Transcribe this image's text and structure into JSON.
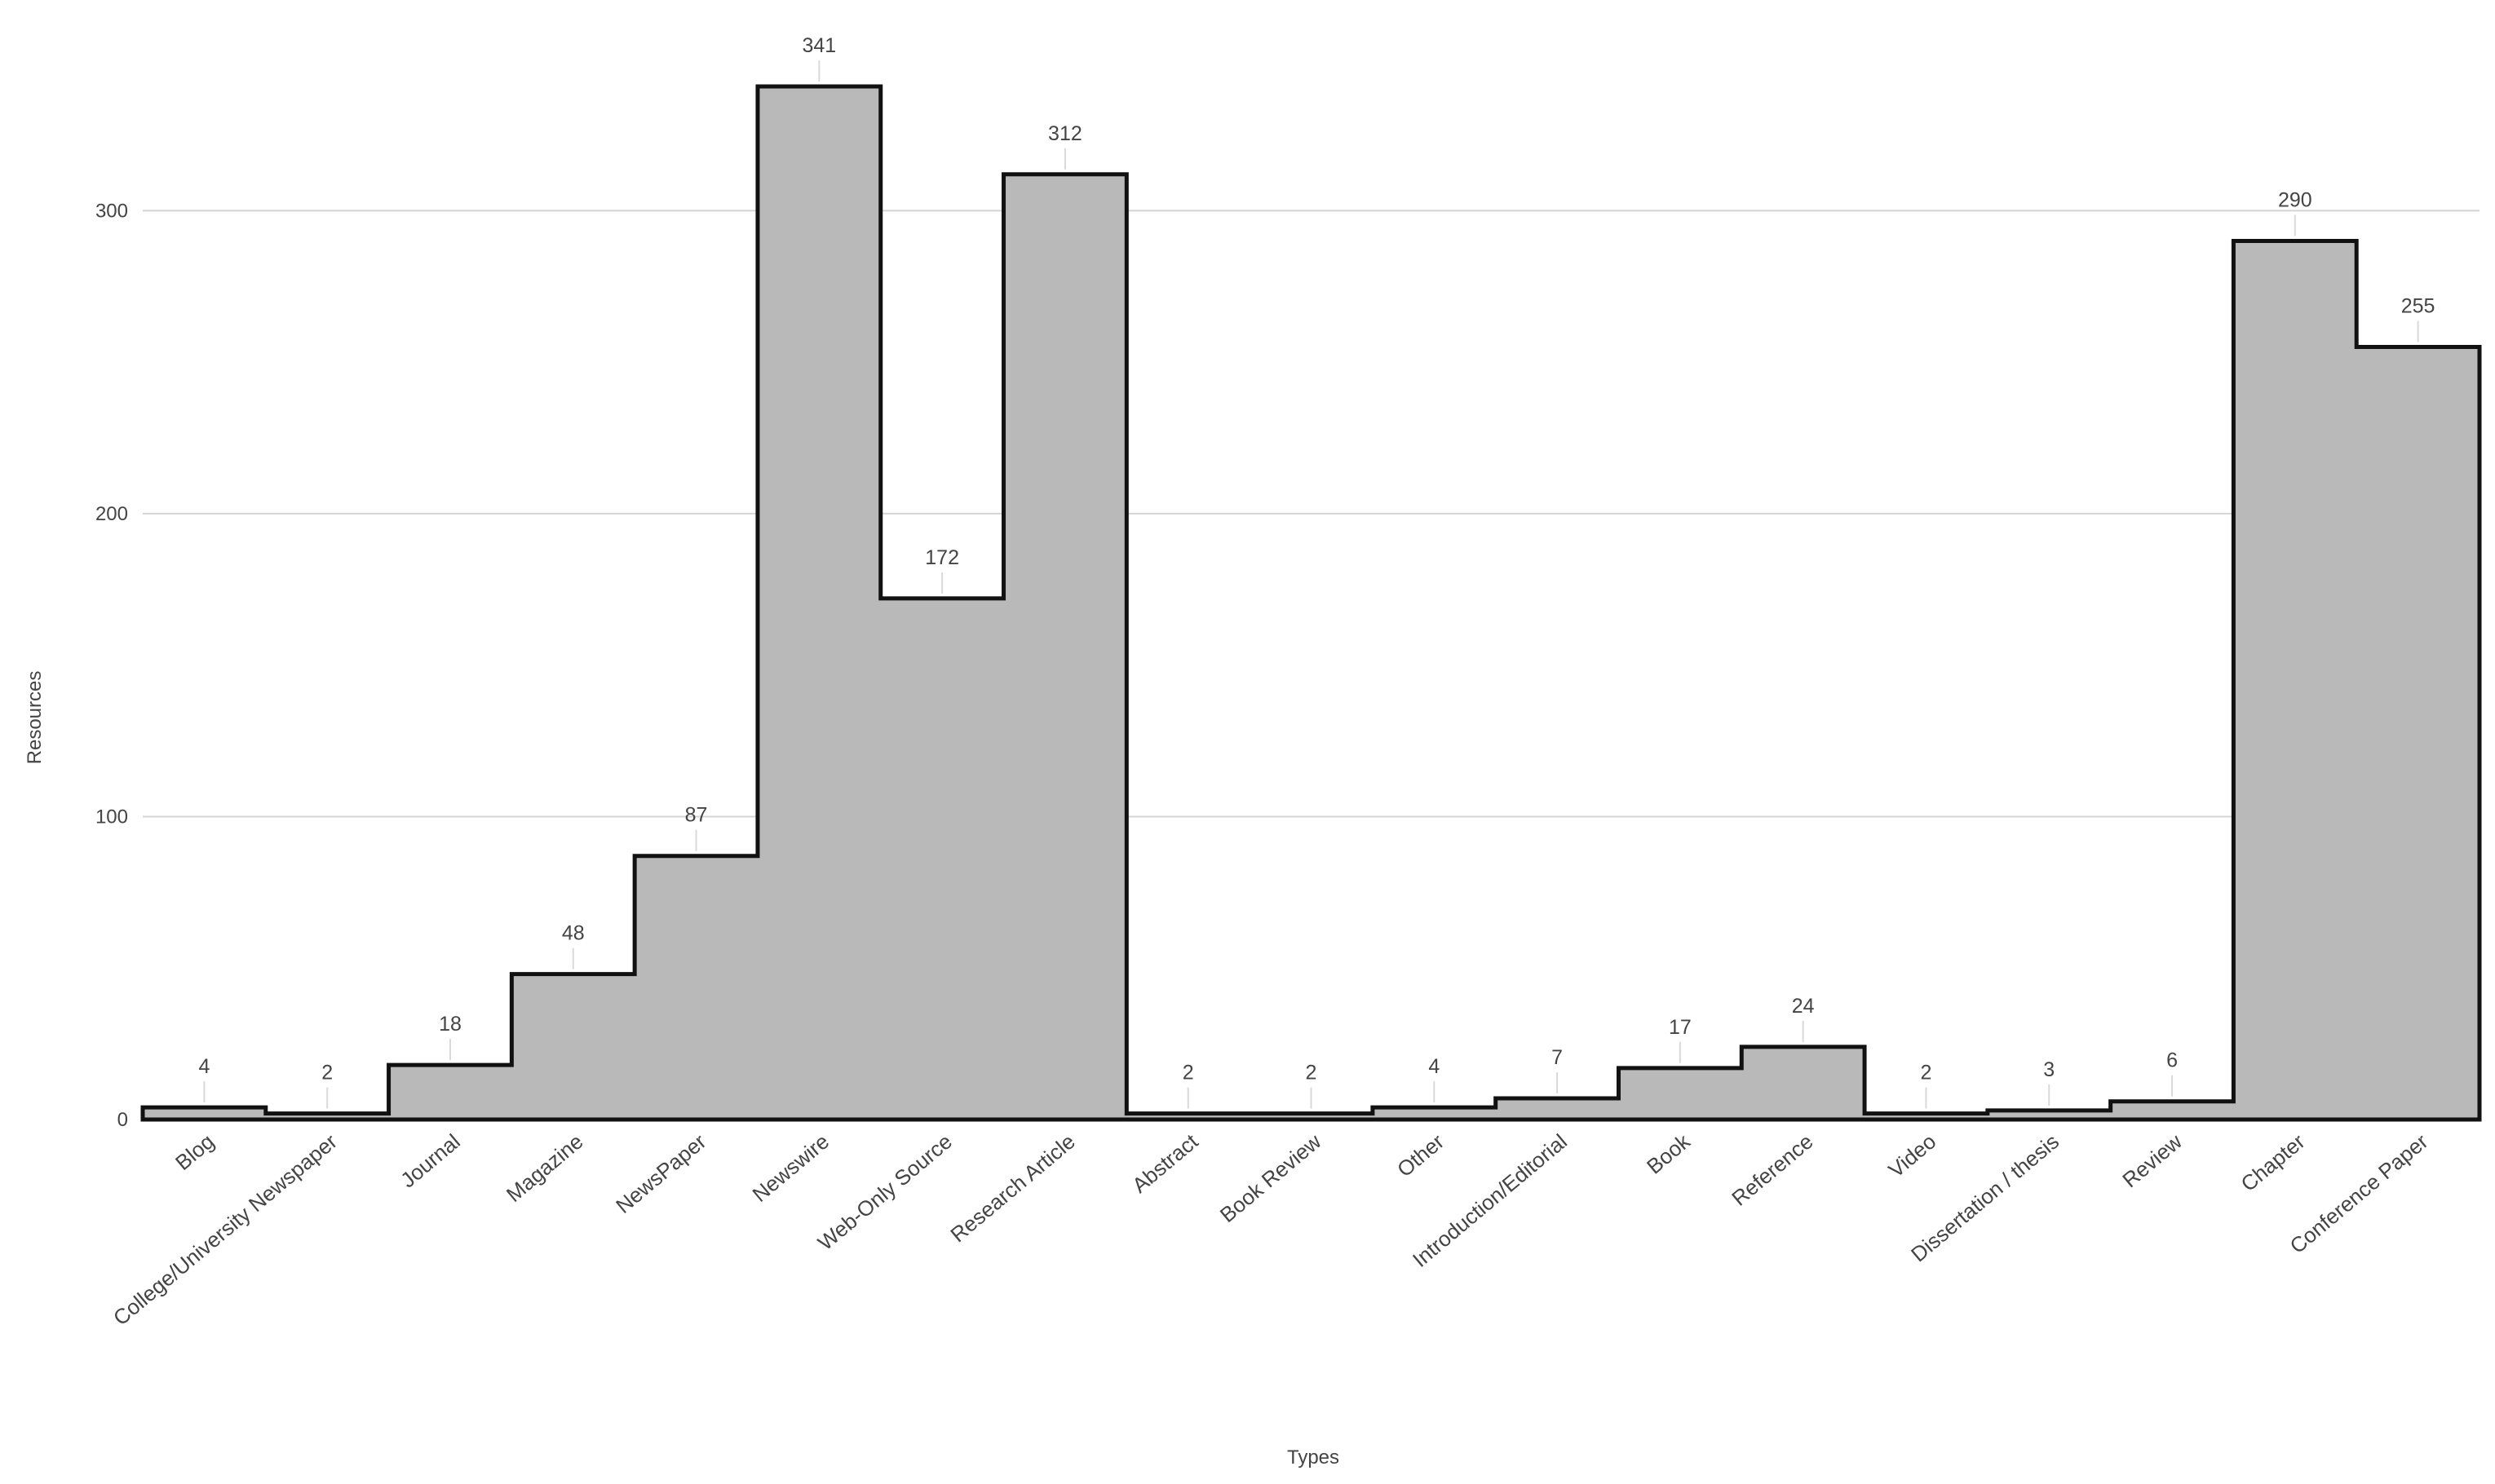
{
  "chart_data": {
    "type": "area",
    "xlabel": "Types",
    "ylabel": "Resources",
    "ylim": [
      0,
      345
    ],
    "yticks": [
      0,
      100,
      200,
      300
    ],
    "grid": true,
    "categories": [
      "Blog",
      "College/University Newspaper",
      "Journal",
      "Magazine",
      "NewsPaper",
      "Newswire",
      "Web-Only Source",
      "Research Article",
      "Abstract",
      "Book Review",
      "Other",
      "Introduction/Editorial",
      "Book",
      "Reference",
      "Video",
      "Dissertation / thesis",
      "Review",
      "Chapter",
      "Conference Paper"
    ],
    "values": [
      4,
      2,
      18,
      48,
      87,
      341,
      172,
      312,
      2,
      2,
      4,
      7,
      17,
      24,
      2,
      3,
      6,
      290,
      255
    ],
    "colors": {
      "fill": "#b9b9b9",
      "line": "#111111",
      "grid": "#d4d4d4"
    }
  }
}
